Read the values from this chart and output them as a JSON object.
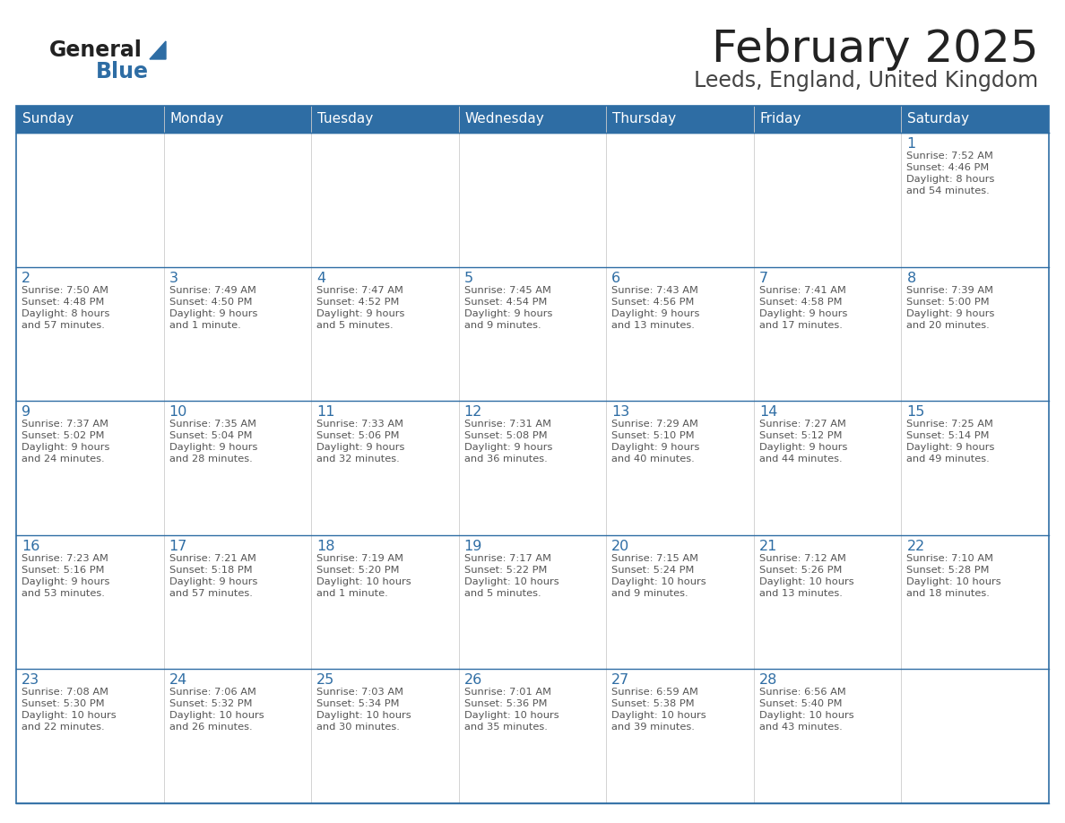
{
  "title": "February 2025",
  "subtitle": "Leeds, England, United Kingdom",
  "days_of_week": [
    "Sunday",
    "Monday",
    "Tuesday",
    "Wednesday",
    "Thursday",
    "Friday",
    "Saturday"
  ],
  "header_bg": "#2E6DA4",
  "header_text": "#FFFFFF",
  "cell_bg": "#FFFFFF",
  "border_color": "#2E6DA4",
  "row_border_color": "#2E6DA4",
  "col_border_color": "#CCCCCC",
  "day_number_color": "#2E6DA4",
  "cell_text_color": "#555555",
  "title_color": "#222222",
  "subtitle_color": "#444444",
  "logo_general_color": "#222222",
  "logo_blue_color": "#2E6DA4",
  "calendar_data": [
    [
      null,
      null,
      null,
      null,
      null,
      null,
      {
        "day": 1,
        "sunrise": "7:52 AM",
        "sunset": "4:46 PM",
        "daylight": "8 hours and 54 minutes."
      }
    ],
    [
      {
        "day": 2,
        "sunrise": "7:50 AM",
        "sunset": "4:48 PM",
        "daylight": "8 hours and 57 minutes."
      },
      {
        "day": 3,
        "sunrise": "7:49 AM",
        "sunset": "4:50 PM",
        "daylight": "9 hours and 1 minute."
      },
      {
        "day": 4,
        "sunrise": "7:47 AM",
        "sunset": "4:52 PM",
        "daylight": "9 hours and 5 minutes."
      },
      {
        "day": 5,
        "sunrise": "7:45 AM",
        "sunset": "4:54 PM",
        "daylight": "9 hours and 9 minutes."
      },
      {
        "day": 6,
        "sunrise": "7:43 AM",
        "sunset": "4:56 PM",
        "daylight": "9 hours and 13 minutes."
      },
      {
        "day": 7,
        "sunrise": "7:41 AM",
        "sunset": "4:58 PM",
        "daylight": "9 hours and 17 minutes."
      },
      {
        "day": 8,
        "sunrise": "7:39 AM",
        "sunset": "5:00 PM",
        "daylight": "9 hours and 20 minutes."
      }
    ],
    [
      {
        "day": 9,
        "sunrise": "7:37 AM",
        "sunset": "5:02 PM",
        "daylight": "9 hours and 24 minutes."
      },
      {
        "day": 10,
        "sunrise": "7:35 AM",
        "sunset": "5:04 PM",
        "daylight": "9 hours and 28 minutes."
      },
      {
        "day": 11,
        "sunrise": "7:33 AM",
        "sunset": "5:06 PM",
        "daylight": "9 hours and 32 minutes."
      },
      {
        "day": 12,
        "sunrise": "7:31 AM",
        "sunset": "5:08 PM",
        "daylight": "9 hours and 36 minutes."
      },
      {
        "day": 13,
        "sunrise": "7:29 AM",
        "sunset": "5:10 PM",
        "daylight": "9 hours and 40 minutes."
      },
      {
        "day": 14,
        "sunrise": "7:27 AM",
        "sunset": "5:12 PM",
        "daylight": "9 hours and 44 minutes."
      },
      {
        "day": 15,
        "sunrise": "7:25 AM",
        "sunset": "5:14 PM",
        "daylight": "9 hours and 49 minutes."
      }
    ],
    [
      {
        "day": 16,
        "sunrise": "7:23 AM",
        "sunset": "5:16 PM",
        "daylight": "9 hours and 53 minutes."
      },
      {
        "day": 17,
        "sunrise": "7:21 AM",
        "sunset": "5:18 PM",
        "daylight": "9 hours and 57 minutes."
      },
      {
        "day": 18,
        "sunrise": "7:19 AM",
        "sunset": "5:20 PM",
        "daylight": "10 hours and 1 minute."
      },
      {
        "day": 19,
        "sunrise": "7:17 AM",
        "sunset": "5:22 PM",
        "daylight": "10 hours and 5 minutes."
      },
      {
        "day": 20,
        "sunrise": "7:15 AM",
        "sunset": "5:24 PM",
        "daylight": "10 hours and 9 minutes."
      },
      {
        "day": 21,
        "sunrise": "7:12 AM",
        "sunset": "5:26 PM",
        "daylight": "10 hours and 13 minutes."
      },
      {
        "day": 22,
        "sunrise": "7:10 AM",
        "sunset": "5:28 PM",
        "daylight": "10 hours and 18 minutes."
      }
    ],
    [
      {
        "day": 23,
        "sunrise": "7:08 AM",
        "sunset": "5:30 PM",
        "daylight": "10 hours and 22 minutes."
      },
      {
        "day": 24,
        "sunrise": "7:06 AM",
        "sunset": "5:32 PM",
        "daylight": "10 hours and 26 minutes."
      },
      {
        "day": 25,
        "sunrise": "7:03 AM",
        "sunset": "5:34 PM",
        "daylight": "10 hours and 30 minutes."
      },
      {
        "day": 26,
        "sunrise": "7:01 AM",
        "sunset": "5:36 PM",
        "daylight": "10 hours and 35 minutes."
      },
      {
        "day": 27,
        "sunrise": "6:59 AM",
        "sunset": "5:38 PM",
        "daylight": "10 hours and 39 minutes."
      },
      {
        "day": 28,
        "sunrise": "6:56 AM",
        "sunset": "5:40 PM",
        "daylight": "10 hours and 43 minutes."
      },
      null
    ]
  ],
  "figsize": [
    11.88,
    9.18
  ],
  "dpi": 100
}
